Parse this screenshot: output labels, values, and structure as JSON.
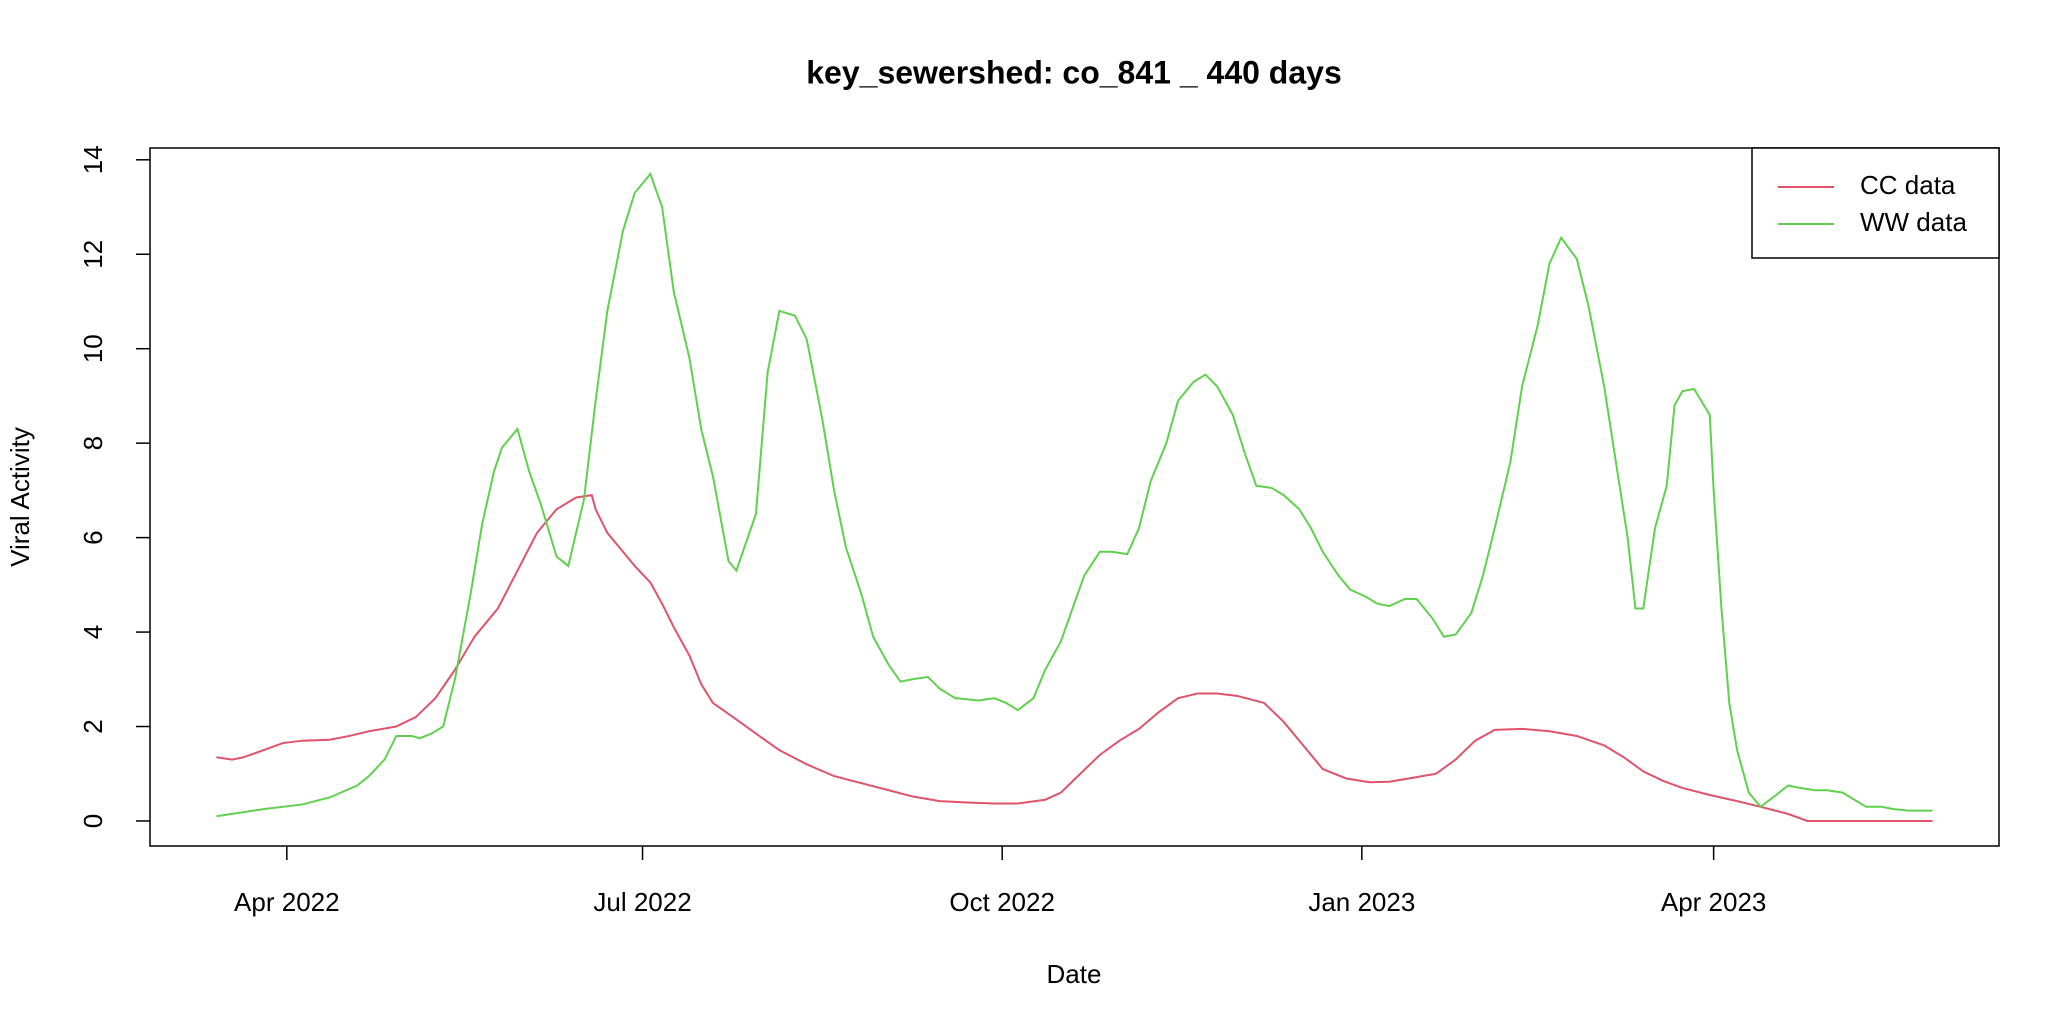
{
  "chart_data": {
    "type": "line",
    "title": "key_sewershed:  co_841 _ 440  days",
    "xlabel": "Date",
    "ylabel": "Viral Activity",
    "xlim": [
      -35,
      438
    ],
    "xticks": [
      {
        "value": 0,
        "label": "Apr 2022"
      },
      {
        "value": 91,
        "label": "Jul 2022"
      },
      {
        "value": 183,
        "label": "Oct 2022"
      },
      {
        "value": 275,
        "label": "Jan 2023"
      },
      {
        "value": 365,
        "label": "Apr 2023"
      }
    ],
    "ylim": [
      -0.53,
      14.25
    ],
    "yticks": [
      0,
      2,
      4,
      6,
      8,
      10,
      12,
      14
    ],
    "grid": false,
    "legend": "top-right",
    "series": [
      {
        "name": "CC data",
        "color": "#DF536B",
        "x": [
          -18,
          -14,
          -11,
          -6,
          -1,
          4,
          11,
          16,
          21,
          28,
          33,
          38,
          43,
          48,
          54,
          59,
          64,
          69,
          74,
          78,
          79,
          82,
          86,
          89,
          93,
          96,
          99,
          103,
          106,
          109,
          115,
          120,
          126,
          133,
          140,
          147,
          154,
          160,
          167,
          174,
          181,
          187,
          194,
          198,
          203,
          208,
          213,
          218,
          223,
          228,
          233,
          238,
          243,
          250,
          255,
          260,
          265,
          271,
          277,
          282,
          287,
          294,
          299,
          304,
          309,
          316,
          323,
          330,
          337,
          342,
          347,
          352,
          357,
          364,
          371,
          377,
          384,
          389,
          401,
          421
        ],
        "values": [
          1.35,
          1.3,
          1.35,
          1.5,
          1.65,
          1.7,
          1.72,
          1.8,
          1.9,
          2.0,
          2.2,
          2.6,
          3.2,
          3.9,
          4.5,
          5.3,
          6.1,
          6.6,
          6.85,
          6.9,
          6.6,
          6.1,
          5.7,
          5.4,
          5.05,
          4.6,
          4.1,
          3.5,
          2.9,
          2.5,
          2.15,
          1.85,
          1.5,
          1.2,
          0.95,
          0.8,
          0.65,
          0.52,
          0.42,
          0.39,
          0.37,
          0.37,
          0.45,
          0.6,
          1.0,
          1.4,
          1.7,
          1.95,
          2.3,
          2.6,
          2.7,
          2.7,
          2.65,
          2.5,
          2.1,
          1.6,
          1.1,
          0.9,
          0.82,
          0.83,
          0.9,
          1.0,
          1.3,
          1.7,
          1.93,
          1.95,
          1.9,
          1.8,
          1.6,
          1.35,
          1.05,
          0.85,
          0.7,
          0.55,
          0.42,
          0.3,
          0.15,
          0,
          0,
          0
        ]
      },
      {
        "name": "WW data",
        "color": "#61D04F",
        "x": [
          -18,
          -6,
          4,
          11,
          18,
          21,
          25,
          28,
          32,
          34,
          37,
          40,
          43,
          47,
          50,
          53,
          55,
          59,
          62,
          65,
          69,
          72,
          76,
          79,
          82,
          86,
          89,
          93,
          96,
          99,
          103,
          106,
          109,
          113,
          115,
          120,
          123,
          126,
          130,
          133,
          137,
          140,
          143,
          147,
          150,
          154,
          157,
          160,
          164,
          167,
          171,
          177,
          181,
          184,
          187,
          191,
          194,
          198,
          201,
          204,
          208,
          211,
          215,
          218,
          221,
          225,
          228,
          232,
          235,
          238,
          242,
          245,
          248,
          252,
          255,
          259,
          262,
          265,
          269,
          272,
          276,
          279,
          282,
          286,
          289,
          293,
          296,
          299,
          303,
          306,
          309,
          313,
          316,
          320,
          323,
          326,
          330,
          333,
          337,
          340,
          343,
          345,
          347,
          350,
          353,
          355,
          357,
          360,
          364,
          365,
          367,
          369,
          371,
          374,
          377,
          381,
          384,
          387,
          391,
          394,
          398,
          401,
          404,
          408,
          411,
          415,
          421
        ],
        "values": [
          0.1,
          0.25,
          0.35,
          0.5,
          0.75,
          0.95,
          1.3,
          1.8,
          1.8,
          1.75,
          1.85,
          2.0,
          3.0,
          4.8,
          6.3,
          7.4,
          7.9,
          8.3,
          7.4,
          6.7,
          5.6,
          5.4,
          6.8,
          8.9,
          10.8,
          12.5,
          13.3,
          13.7,
          13.0,
          11.2,
          9.8,
          8.3,
          7.3,
          5.5,
          5.3,
          6.5,
          9.5,
          10.8,
          10.7,
          10.2,
          8.5,
          7.0,
          5.8,
          4.8,
          3.9,
          3.3,
          2.95,
          3.0,
          3.05,
          2.8,
          2.6,
          2.55,
          2.6,
          2.5,
          2.35,
          2.6,
          3.2,
          3.8,
          4.5,
          5.2,
          5.7,
          5.7,
          5.65,
          6.2,
          7.2,
          8.0,
          8.9,
          9.3,
          9.45,
          9.2,
          8.6,
          7.8,
          7.1,
          7.05,
          6.9,
          6.6,
          6.2,
          5.7,
          5.2,
          4.9,
          4.75,
          4.6,
          4.55,
          4.7,
          4.7,
          4.3,
          3.9,
          3.95,
          4.4,
          5.2,
          6.2,
          7.6,
          9.2,
          10.5,
          11.8,
          12.35,
          11.9,
          10.9,
          9.2,
          7.6,
          6.0,
          4.5,
          4.5,
          6.2,
          7.1,
          8.8,
          9.1,
          9.15,
          8.6,
          7.0,
          4.5,
          2.5,
          1.5,
          0.6,
          0.3,
          0.55,
          0.75,
          0.7,
          0.65,
          0.65,
          0.6,
          0.45,
          0.3,
          0.3,
          0.25,
          0.22,
          0.22
        ]
      }
    ]
  }
}
